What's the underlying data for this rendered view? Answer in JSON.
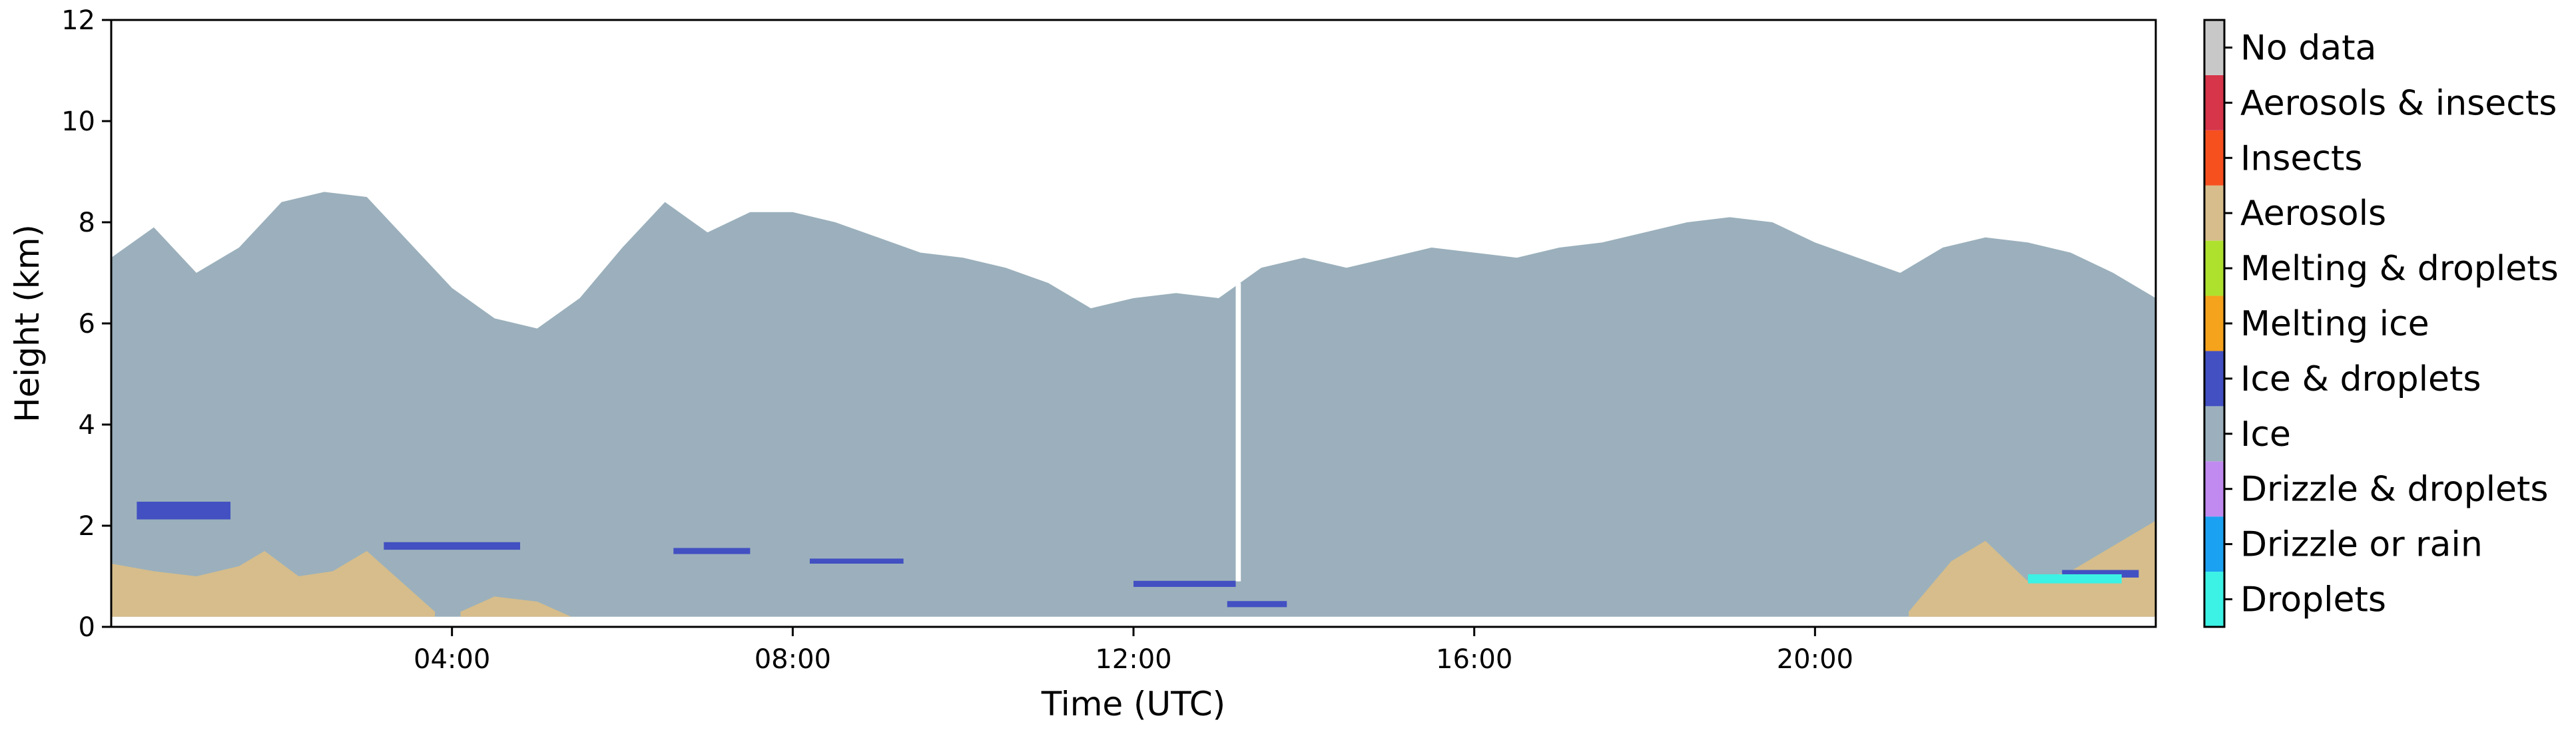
{
  "chart_data": {
    "type": "heatmap",
    "title": "",
    "xlabel": "Time (UTC)",
    "ylabel": "Height (km)",
    "xlim": [
      0,
      24
    ],
    "ylim": [
      0,
      12
    ],
    "x_ticks": [
      "04:00",
      "08:00",
      "12:00",
      "16:00",
      "20:00"
    ],
    "x_tick_hours": [
      4,
      8,
      12,
      16,
      20
    ],
    "y_ticks": [
      0,
      2,
      4,
      6,
      8,
      10,
      12
    ],
    "colorbar": {
      "placement": "right",
      "classes": [
        {
          "label": "Droplets",
          "color": "#3cf2e4"
        },
        {
          "label": "Drizzle or rain",
          "color": "#1ba1f2"
        },
        {
          "label": "Drizzle & droplets",
          "color": "#c08af0"
        },
        {
          "label": "Ice",
          "color": "#9bb0bc"
        },
        {
          "label": "Ice & droplets",
          "color": "#4250c2"
        },
        {
          "label": "Melting ice",
          "color": "#f5a21c"
        },
        {
          "label": "Melting & droplets",
          "color": "#aee12e"
        },
        {
          "label": "Aerosols",
          "color": "#d6bd8b"
        },
        {
          "label": "Insects",
          "color": "#f7501f"
        },
        {
          "label": "Aerosols & insects",
          "color": "#d6354a"
        },
        {
          "label": "No data",
          "color": "#c8c8c8"
        }
      ]
    },
    "regions": {
      "ice_top_km": [
        [
          0,
          7.3
        ],
        [
          0.5,
          7.9
        ],
        [
          1,
          7.0
        ],
        [
          1.5,
          7.5
        ],
        [
          2,
          8.4
        ],
        [
          2.5,
          8.6
        ],
        [
          3,
          8.5
        ],
        [
          3.5,
          7.6
        ],
        [
          4,
          6.7
        ],
        [
          4.5,
          6.1
        ],
        [
          5,
          5.9
        ],
        [
          5.5,
          6.5
        ],
        [
          6,
          7.5
        ],
        [
          6.5,
          8.4
        ],
        [
          7,
          7.8
        ],
        [
          7.5,
          8.2
        ],
        [
          8,
          8.2
        ],
        [
          8.5,
          8.0
        ],
        [
          9,
          7.7
        ],
        [
          9.5,
          7.4
        ],
        [
          10,
          7.3
        ],
        [
          10.5,
          7.1
        ],
        [
          11,
          6.8
        ],
        [
          11.5,
          6.3
        ],
        [
          12,
          6.5
        ],
        [
          12.5,
          6.6
        ],
        [
          13,
          6.5
        ],
        [
          13.5,
          7.1
        ],
        [
          14,
          7.3
        ],
        [
          14.5,
          7.1
        ],
        [
          15,
          7.3
        ],
        [
          15.5,
          7.5
        ],
        [
          16,
          7.4
        ],
        [
          16.5,
          7.3
        ],
        [
          17,
          7.5
        ],
        [
          17.5,
          7.6
        ],
        [
          18,
          7.8
        ],
        [
          18.5,
          8.0
        ],
        [
          19,
          8.1
        ],
        [
          19.5,
          8.0
        ],
        [
          20,
          7.6
        ],
        [
          20.5,
          7.3
        ],
        [
          21,
          7.0
        ],
        [
          21.5,
          7.5
        ],
        [
          22,
          7.7
        ],
        [
          22.5,
          7.6
        ],
        [
          23,
          7.4
        ],
        [
          23.5,
          7.0
        ],
        [
          24,
          6.5
        ]
      ],
      "ice_base_km": 0.2,
      "aerosol_layers_km": [
        {
          "t0": 0,
          "t1": 3.8,
          "top": [
            [
              0,
              1.25
            ],
            [
              0.5,
              1.1
            ],
            [
              1,
              1.0
            ],
            [
              1.5,
              1.2
            ],
            [
              1.8,
              1.5
            ],
            [
              2.2,
              1.0
            ],
            [
              2.6,
              1.1
            ],
            [
              3.0,
              1.5
            ],
            [
              3.4,
              0.9
            ],
            [
              3.8,
              0.3
            ]
          ]
        },
        {
          "t0": 4.1,
          "t1": 5.4,
          "top": [
            [
              4.1,
              0.3
            ],
            [
              4.5,
              0.6
            ],
            [
              5.0,
              0.5
            ],
            [
              5.4,
              0.2
            ]
          ]
        },
        {
          "t0": 21.1,
          "t1": 24,
          "top": [
            [
              21.1,
              0.3
            ],
            [
              21.6,
              1.3
            ],
            [
              22.0,
              1.7
            ],
            [
              22.5,
              0.9
            ],
            [
              23.0,
              1.1
            ],
            [
              23.5,
              1.6
            ],
            [
              24,
              2.1
            ]
          ]
        }
      ],
      "ice_and_droplets_segments": [
        {
          "t0": 0.3,
          "t1": 1.4,
          "h": 2.3,
          "th": 0.35
        },
        {
          "t0": 3.2,
          "t1": 4.8,
          "h": 1.6,
          "th": 0.15
        },
        {
          "t0": 6.6,
          "t1": 7.5,
          "h": 1.5,
          "th": 0.12
        },
        {
          "t0": 8.2,
          "t1": 9.3,
          "h": 1.3,
          "th": 0.1
        },
        {
          "t0": 12.0,
          "t1": 13.2,
          "h": 0.85,
          "th": 0.12
        },
        {
          "t0": 13.1,
          "t1": 13.8,
          "h": 0.45,
          "th": 0.12
        },
        {
          "t0": 22.9,
          "t1": 23.8,
          "h": 1.05,
          "th": 0.15
        }
      ],
      "droplet_segments": [
        {
          "t0": 22.5,
          "t1": 23.6,
          "h": 0.95,
          "th": 0.18
        }
      ],
      "no_data_gaps": [
        {
          "t0": 13.2,
          "t1": 13.26
        }
      ]
    }
  }
}
